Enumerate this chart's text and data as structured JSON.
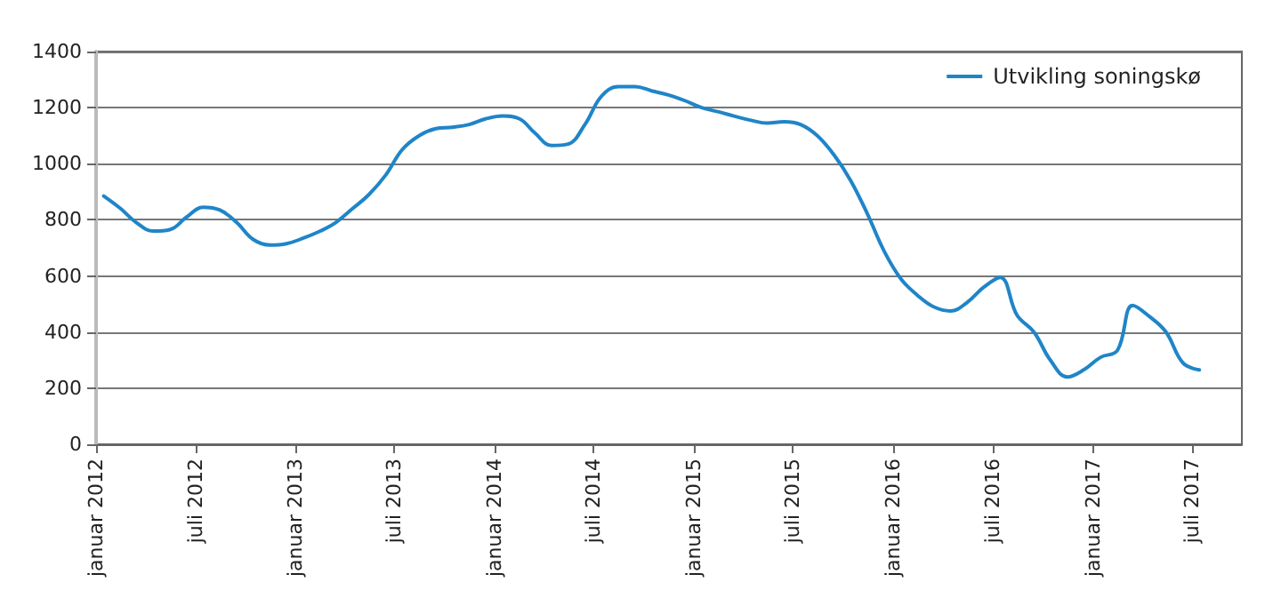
{
  "chart_data": {
    "type": "line",
    "x": [
      "2012-01-15",
      "2012-02-15",
      "2012-03-15",
      "2012-04-15",
      "2012-05-15",
      "2012-06-15",
      "2012-07-15",
      "2012-08-15",
      "2012-09-15",
      "2012-10-15",
      "2012-11-15",
      "2012-12-15",
      "2013-01-15",
      "2013-02-15",
      "2013-03-15",
      "2013-04-15",
      "2013-05-15",
      "2013-06-15",
      "2013-07-15",
      "2013-08-15",
      "2013-09-15",
      "2013-10-15",
      "2013-11-15",
      "2013-12-15",
      "2014-01-15",
      "2014-02-15",
      "2014-03-15",
      "2014-04-15",
      "2014-05-15",
      "2014-06-15",
      "2014-07-15",
      "2014-08-15",
      "2014-09-15",
      "2014-10-15",
      "2014-11-15",
      "2014-12-15",
      "2015-01-15",
      "2015-02-15",
      "2015-03-15",
      "2015-04-15",
      "2015-05-15",
      "2015-06-15",
      "2015-07-15",
      "2015-08-15",
      "2015-09-15",
      "2015-10-15",
      "2015-11-15",
      "2015-12-15",
      "2016-01-15",
      "2016-02-15",
      "2016-03-15",
      "2016-04-15",
      "2016-05-15",
      "2016-06-15",
      "2016-07-15",
      "2016-08-15",
      "2016-09-15",
      "2016-10-15",
      "2016-11-15",
      "2016-12-15",
      "2017-01-15",
      "2017-02-15",
      "2017-03-15",
      "2017-04-15",
      "2017-05-15",
      "2017-06-15",
      "2017-07-15"
    ],
    "series": [
      {
        "name": "Utvikling soningskø",
        "color": "#1f85c8",
        "values": [
          885,
          840,
          790,
          760,
          765,
          810,
          845,
          835,
          790,
          730,
          710,
          715,
          735,
          760,
          790,
          840,
          890,
          960,
          1050,
          1100,
          1125,
          1130,
          1140,
          1160,
          1170,
          1160,
          1110,
          1065,
          1070,
          1140,
          1240,
          1275,
          1275,
          1260,
          1245,
          1225,
          1200,
          1185,
          1170,
          1155,
          1145,
          1150,
          1140,
          1100,
          1030,
          940,
          820,
          690,
          590,
          530,
          490,
          475,
          505,
          560,
          595,
          460,
          400,
          300,
          240,
          265,
          310,
          335,
          495,
          455,
          400,
          290,
          265
        ]
      }
    ],
    "xlim": [
      "2012-01-01",
      "2017-10-01"
    ],
    "xticks": [
      {
        "value": "2012-01-01",
        "label": "januar 2012"
      },
      {
        "value": "2012-07-01",
        "label": "juli 2012"
      },
      {
        "value": "2013-01-01",
        "label": "januar 2013"
      },
      {
        "value": "2013-07-01",
        "label": "juli 2013"
      },
      {
        "value": "2014-01-01",
        "label": "januar 2014"
      },
      {
        "value": "2014-07-01",
        "label": "juli 2014"
      },
      {
        "value": "2015-01-01",
        "label": "januar 2015"
      },
      {
        "value": "2015-07-01",
        "label": "juli 2015"
      },
      {
        "value": "2016-01-01",
        "label": "januar 2016"
      },
      {
        "value": "2016-07-01",
        "label": "juli 2016"
      },
      {
        "value": "2017-01-01",
        "label": "januar 2017"
      },
      {
        "value": "2017-07-01",
        "label": "juli 2017"
      }
    ],
    "ylim": [
      0,
      1400
    ],
    "yticks": [
      0,
      200,
      400,
      600,
      800,
      1000,
      1200,
      1400
    ],
    "grid": "y",
    "legend": "top right",
    "marker": "none",
    "line_style": "solid"
  }
}
